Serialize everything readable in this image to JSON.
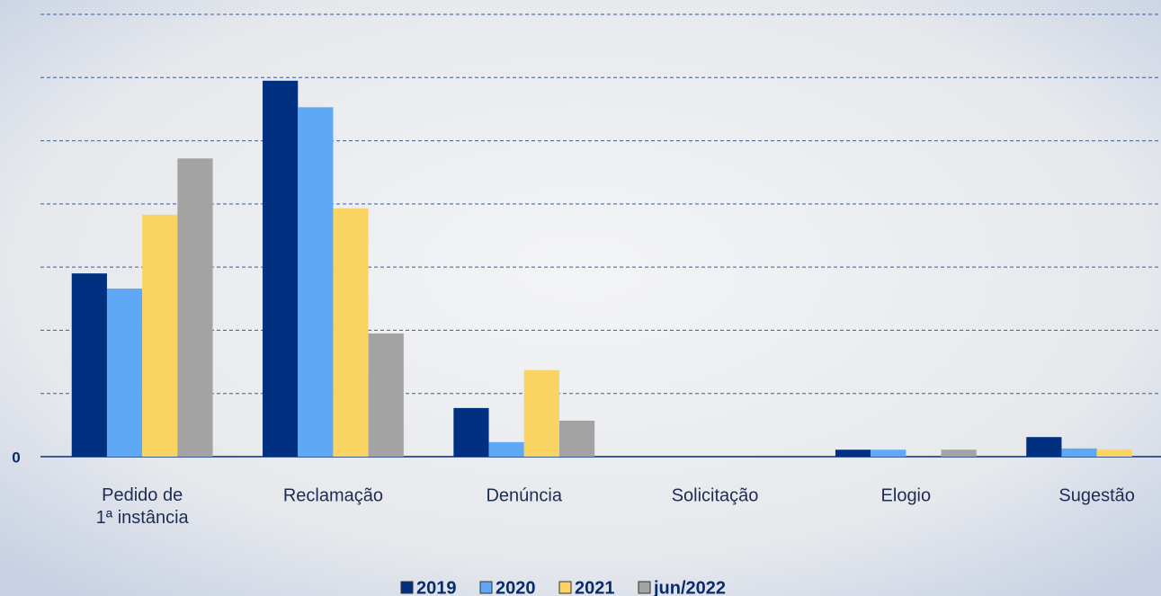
{
  "chart_data": {
    "type": "bar",
    "categories": [
      "Pedido de\n1ª instância",
      "Reclamação",
      "Denúncia",
      "Solicitação",
      "Elogio",
      "Sugestão"
    ],
    "series": [
      {
        "name": "2019",
        "color": "#00307f",
        "values": [
          2.9,
          5.95,
          0.77,
          0,
          0.11,
          0.31
        ]
      },
      {
        "name": "2020",
        "color": "#5ea8f6",
        "values": [
          2.66,
          5.53,
          0.23,
          0,
          0.11,
          0.13
        ]
      },
      {
        "name": "2021",
        "color": "#f9d463",
        "values": [
          3.83,
          3.93,
          1.37,
          0,
          0,
          0.11
        ]
      },
      {
        "name": "jun/2022",
        "color": "#a3a3a3",
        "values": [
          4.72,
          1.95,
          0.57,
          0,
          0.11,
          0
        ]
      }
    ],
    "ylim": [
      0,
      7
    ],
    "yticks": [
      0
    ],
    "grid_lines": [
      1,
      2,
      3,
      4,
      5,
      6,
      7
    ],
    "grid": true,
    "legend": "bottom"
  }
}
